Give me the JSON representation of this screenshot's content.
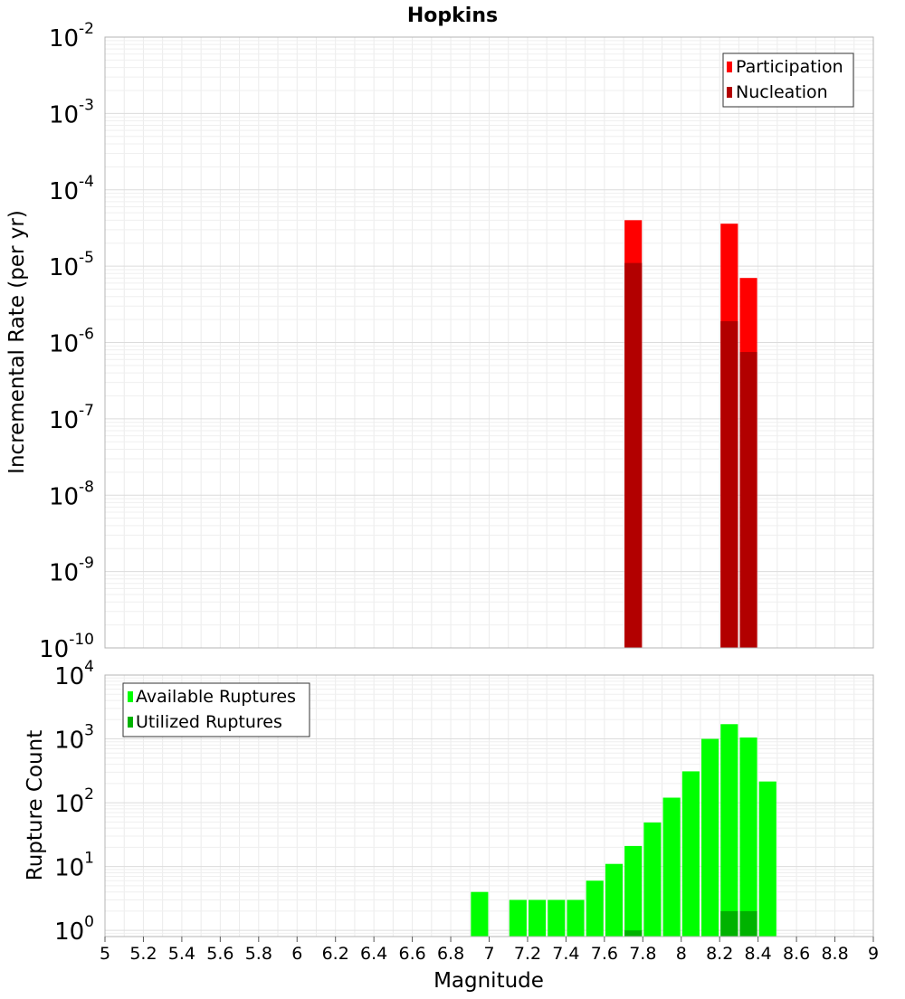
{
  "chart_data": [
    {
      "type": "bar",
      "title": "Hopkins",
      "xlabel": "",
      "ylabel": "Incremental Rate (per yr)",
      "yscale": "log",
      "ylim": [
        1e-10,
        0.01
      ],
      "ytick_labels": [
        {
          "base": "10",
          "exp": "-10"
        },
        {
          "base": "10",
          "exp": "-9"
        },
        {
          "base": "10",
          "exp": "-8"
        },
        {
          "base": "10",
          "exp": "-7"
        },
        {
          "base": "10",
          "exp": "-6"
        },
        {
          "base": "10",
          "exp": "-5"
        },
        {
          "base": "10",
          "exp": "-4"
        },
        {
          "base": "10",
          "exp": "-3"
        },
        {
          "base": "10",
          "exp": "-2"
        }
      ],
      "legend_position": "top-right",
      "grid": true,
      "series": [
        {
          "name": "Participation",
          "color": "#ff0000",
          "points": [
            {
              "x": 7.75,
              "y": 4e-05
            },
            {
              "x": 8.25,
              "y": 3.6e-05
            },
            {
              "x": 8.35,
              "y": 7e-06
            }
          ]
        },
        {
          "name": "Nucleation",
          "color": "#b20000",
          "points": [
            {
              "x": 7.75,
              "y": 1.1e-05
            },
            {
              "x": 8.25,
              "y": 1.9e-06
            },
            {
              "x": 8.35,
              "y": 7.5e-07
            }
          ]
        }
      ]
    },
    {
      "type": "bar",
      "title": "",
      "xlabel": "Magnitude",
      "ylabel": "Rupture Count",
      "yscale": "log",
      "xlim": [
        5,
        9
      ],
      "ylim": [
        0.8,
        10000
      ],
      "xtick_labels": [
        "5",
        "5.2",
        "5.4",
        "5.6",
        "5.8",
        "6",
        "6.2",
        "6.4",
        "6.6",
        "6.8",
        "7",
        "7.2",
        "7.4",
        "7.6",
        "7.8",
        "8",
        "8.2",
        "8.4",
        "8.6",
        "8.8",
        "9"
      ],
      "ytick_labels": [
        {
          "base": "10",
          "exp": "0"
        },
        {
          "base": "10",
          "exp": "1"
        },
        {
          "base": "10",
          "exp": "2"
        },
        {
          "base": "10",
          "exp": "3"
        },
        {
          "base": "10",
          "exp": "4"
        }
      ],
      "legend_position": "top-left",
      "grid": true,
      "series": [
        {
          "name": "Available Ruptures",
          "color": "#00ff00",
          "points": [
            {
              "x": 6.95,
              "y": 4
            },
            {
              "x": 7.15,
              "y": 3
            },
            {
              "x": 7.25,
              "y": 3
            },
            {
              "x": 7.35,
              "y": 3
            },
            {
              "x": 7.45,
              "y": 3
            },
            {
              "x": 7.55,
              "y": 6
            },
            {
              "x": 7.65,
              "y": 11
            },
            {
              "x": 7.75,
              "y": 21
            },
            {
              "x": 7.85,
              "y": 49
            },
            {
              "x": 7.95,
              "y": 120
            },
            {
              "x": 8.05,
              "y": 310
            },
            {
              "x": 8.15,
              "y": 1000
            },
            {
              "x": 8.25,
              "y": 1700
            },
            {
              "x": 8.35,
              "y": 1050
            },
            {
              "x": 8.45,
              "y": 215
            }
          ]
        },
        {
          "name": "Utilized Ruptures",
          "color": "#00b200",
          "points": [
            {
              "x": 7.75,
              "y": 1
            },
            {
              "x": 8.25,
              "y": 2
            },
            {
              "x": 8.35,
              "y": 2
            }
          ]
        }
      ]
    }
  ]
}
